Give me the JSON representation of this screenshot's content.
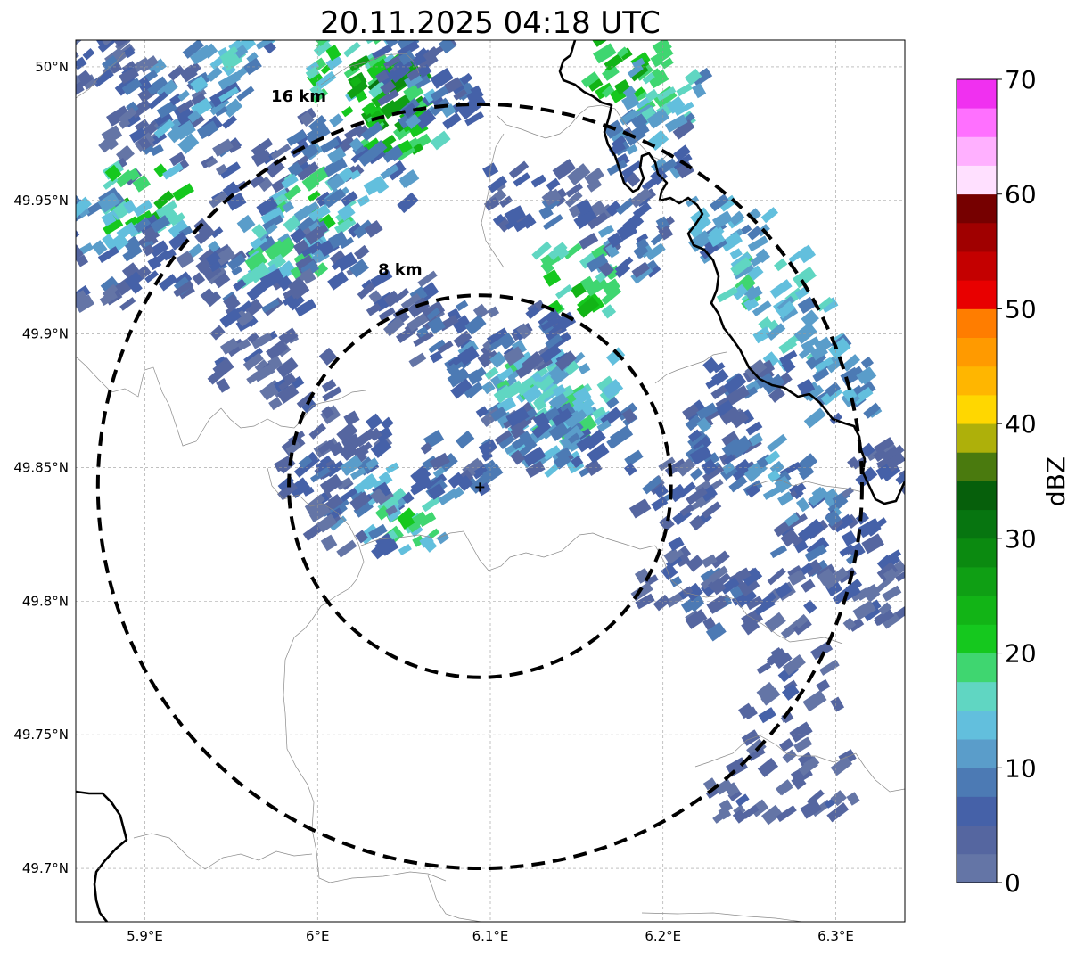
{
  "title": "20.11.2025 04:18 UTC",
  "map": {
    "lon_range": [
      5.86,
      6.34
    ],
    "lat_range": [
      49.68,
      50.01
    ],
    "lon_ticks": [
      {
        "value": 5.9,
        "label": "5.9°E"
      },
      {
        "value": 6.0,
        "label": "6°E"
      },
      {
        "value": 6.1,
        "label": "6.1°E"
      },
      {
        "value": 6.2,
        "label": "6.2°E"
      },
      {
        "value": 6.3,
        "label": "6.3°E"
      }
    ],
    "lat_ticks": [
      {
        "value": 50.0,
        "label": "50°N"
      },
      {
        "value": 49.95,
        "label": "49.95°N"
      },
      {
        "value": 49.9,
        "label": "49.9°N"
      },
      {
        "value": 49.85,
        "label": "49.85°N"
      },
      {
        "value": 49.8,
        "label": "49.8°N"
      },
      {
        "value": 49.75,
        "label": "49.75°N"
      },
      {
        "value": 49.7,
        "label": "49.7°N"
      }
    ],
    "grid": true,
    "radar_center": {
      "lon": 6.094,
      "lat": 49.843
    },
    "range_rings": [
      {
        "label": "8 km",
        "lat_extent": 0.0715
      },
      {
        "label": "16 km",
        "lat_extent": 0.143
      }
    ],
    "ring_label_points": [
      {
        "label_index": 1,
        "lon": 5.973,
        "lat": 49.987
      },
      {
        "label_index": 0,
        "lon": 6.035,
        "lat": 49.922
      }
    ]
  },
  "colorbar": {
    "label": "dBZ",
    "range": [
      0,
      70
    ],
    "ticks": [
      0,
      10,
      20,
      30,
      40,
      50,
      60,
      70
    ],
    "colors": [
      "#6475a6",
      "#5566a0",
      "#4561a8",
      "#4c7ab4",
      "#5a9dca",
      "#62bfdd",
      "#60d6c2",
      "#3fd670",
      "#15c81e",
      "#12b416",
      "#0f9f14",
      "#0b8a10",
      "#077510",
      "#065f0b",
      "#4a7a0e",
      "#aeb00a",
      "#ffd700",
      "#ffb600",
      "#ff9a00",
      "#ff7d00",
      "#e80000",
      "#c40000",
      "#a00000",
      "#760000",
      "#ffe0ff",
      "#ffb0ff",
      "#ff70ff",
      "#f030f0"
    ]
  },
  "reflectivity_cells": [
    {
      "lon": 5.88,
      "lat": 50.0,
      "dbz": 6
    },
    {
      "lon": 5.91,
      "lat": 49.99,
      "dbz": 9
    },
    {
      "lon": 5.9,
      "lat": 49.97,
      "dbz": 5
    },
    {
      "lon": 5.93,
      "lat": 49.98,
      "dbz": 12
    },
    {
      "lon": 5.95,
      "lat": 50.0,
      "dbz": 14
    },
    {
      "lon": 5.9,
      "lat": 49.95,
      "dbz": 22
    },
    {
      "lon": 5.88,
      "lat": 49.94,
      "dbz": 14
    },
    {
      "lon": 5.92,
      "lat": 49.93,
      "dbz": 10
    },
    {
      "lon": 5.94,
      "lat": 49.92,
      "dbz": 7
    },
    {
      "lon": 5.88,
      "lat": 49.92,
      "dbz": 5
    },
    {
      "lon": 5.96,
      "lat": 49.96,
      "dbz": 6
    },
    {
      "lon": 6.02,
      "lat": 50.0,
      "dbz": 20
    },
    {
      "lon": 6.04,
      "lat": 49.99,
      "dbz": 28
    },
    {
      "lon": 6.05,
      "lat": 49.98,
      "dbz": 24
    },
    {
      "lon": 6.07,
      "lat": 49.99,
      "dbz": 11
    },
    {
      "lon": 6.01,
      "lat": 49.97,
      "dbz": 9
    },
    {
      "lon": 6.0,
      "lat": 49.95,
      "dbz": 20
    },
    {
      "lon": 5.99,
      "lat": 49.94,
      "dbz": 13
    },
    {
      "lon": 5.98,
      "lat": 49.93,
      "dbz": 18
    },
    {
      "lon": 6.01,
      "lat": 49.93,
      "dbz": 8
    },
    {
      "lon": 5.97,
      "lat": 49.91,
      "dbz": 6
    },
    {
      "lon": 6.03,
      "lat": 49.96,
      "dbz": 12
    },
    {
      "lon": 6.06,
      "lat": 50.0,
      "dbz": 8
    },
    {
      "lon": 5.96,
      "lat": 49.89,
      "dbz": 5
    },
    {
      "lon": 5.99,
      "lat": 49.88,
      "dbz": 4
    },
    {
      "lon": 6.02,
      "lat": 49.86,
      "dbz": 8
    },
    {
      "lon": 6.0,
      "lat": 49.85,
      "dbz": 6
    },
    {
      "lon": 6.03,
      "lat": 49.84,
      "dbz": 13
    },
    {
      "lon": 6.05,
      "lat": 49.83,
      "dbz": 19
    },
    {
      "lon": 6.02,
      "lat": 49.83,
      "dbz": 7
    },
    {
      "lon": 6.05,
      "lat": 49.91,
      "dbz": 6
    },
    {
      "lon": 6.08,
      "lat": 49.9,
      "dbz": 9
    },
    {
      "lon": 6.1,
      "lat": 49.89,
      "dbz": 11
    },
    {
      "lon": 6.12,
      "lat": 49.88,
      "dbz": 17
    },
    {
      "lon": 6.14,
      "lat": 49.87,
      "dbz": 19
    },
    {
      "lon": 6.15,
      "lat": 49.88,
      "dbz": 16
    },
    {
      "lon": 6.13,
      "lat": 49.86,
      "dbz": 14
    },
    {
      "lon": 6.16,
      "lat": 49.86,
      "dbz": 10
    },
    {
      "lon": 6.11,
      "lat": 49.86,
      "dbz": 8
    },
    {
      "lon": 6.08,
      "lat": 49.85,
      "dbz": 10
    },
    {
      "lon": 6.15,
      "lat": 49.92,
      "dbz": 22
    },
    {
      "lon": 6.12,
      "lat": 49.95,
      "dbz": 7
    },
    {
      "lon": 6.13,
      "lat": 49.9,
      "dbz": 6
    },
    {
      "lon": 6.18,
      "lat": 50.0,
      "dbz": 24
    },
    {
      "lon": 6.2,
      "lat": 49.99,
      "dbz": 16
    },
    {
      "lon": 6.19,
      "lat": 49.97,
      "dbz": 11
    },
    {
      "lon": 6.17,
      "lat": 49.95,
      "dbz": 7
    },
    {
      "lon": 6.18,
      "lat": 49.93,
      "dbz": 10
    },
    {
      "lon": 6.24,
      "lat": 49.94,
      "dbz": 13
    },
    {
      "lon": 6.26,
      "lat": 49.92,
      "dbz": 17
    },
    {
      "lon": 6.28,
      "lat": 49.9,
      "dbz": 15
    },
    {
      "lon": 6.3,
      "lat": 49.88,
      "dbz": 12
    },
    {
      "lon": 6.25,
      "lat": 49.88,
      "dbz": 8
    },
    {
      "lon": 6.23,
      "lat": 49.86,
      "dbz": 9
    },
    {
      "lon": 6.26,
      "lat": 49.85,
      "dbz": 11
    },
    {
      "lon": 6.21,
      "lat": 49.84,
      "dbz": 7
    },
    {
      "lon": 6.29,
      "lat": 49.83,
      "dbz": 10
    },
    {
      "lon": 6.31,
      "lat": 49.82,
      "dbz": 8
    },
    {
      "lon": 6.33,
      "lat": 49.85,
      "dbz": 7
    },
    {
      "lon": 6.32,
      "lat": 49.8,
      "dbz": 5
    },
    {
      "lon": 6.27,
      "lat": 49.8,
      "dbz": 6
    },
    {
      "lon": 6.23,
      "lat": 49.8,
      "dbz": 8
    },
    {
      "lon": 6.21,
      "lat": 49.81,
      "dbz": 6
    },
    {
      "lon": 6.28,
      "lat": 49.77,
      "dbz": 5
    },
    {
      "lon": 6.26,
      "lat": 49.75,
      "dbz": 4
    },
    {
      "lon": 6.25,
      "lat": 49.73,
      "dbz": 4
    },
    {
      "lon": 6.29,
      "lat": 49.73,
      "dbz": 4
    }
  ],
  "map_labels": {
    "center_marker": "+"
  }
}
